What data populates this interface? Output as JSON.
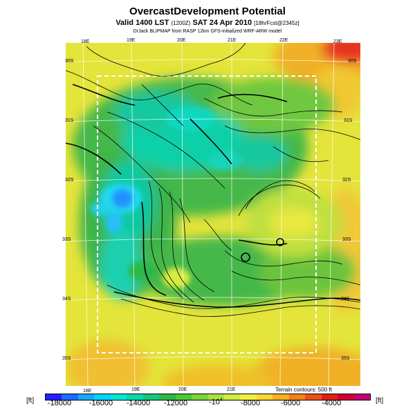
{
  "title": "OvercastDevelopment Potential",
  "subtitle_main": "Valid 1400 LST",
  "subtitle_code": "(1200Z)",
  "subtitle_date": "SAT 24 Apr 2010",
  "subtitle_fcst": "[18hrFcst@2345z]",
  "credit": "DrJack BLIPMAP from RASP 12km GFS-initialized WRF-ARW model",
  "terrain_note": "Terrain contours: 500 ft",
  "unit_left": "[ft]",
  "unit_right": "[ft]",
  "multiplier": "-10",
  "multiplier_exp": "4",
  "longitude_labels_top": [
    "18E",
    "19E",
    "20E",
    "21E",
    "22E",
    "23E"
  ],
  "longitude_labels_bottom": [
    "18E",
    "19E",
    "20E",
    "21E"
  ],
  "latitude_labels_left": [
    "30S",
    "31S",
    "32S",
    "33S",
    "34S",
    "35S"
  ],
  "latitude_labels_right": [
    "30S",
    "31S",
    "32S",
    "33S",
    "34S",
    "35S"
  ],
  "colorbar": {
    "colors": [
      "#2222ff",
      "#1e6bff",
      "#15a8ff",
      "#00d4ff",
      "#00e8d8",
      "#00dcb0",
      "#15c87a",
      "#2cb848",
      "#48c838",
      "#7ad43a",
      "#a8e040",
      "#d0ec40",
      "#f0f040",
      "#f8d830",
      "#f8b020",
      "#f48018",
      "#ec5018",
      "#e02018",
      "#d00030",
      "#c00070"
    ],
    "tick_labels": [
      "-18000",
      "-16000",
      "-14000",
      "-12000",
      "-8000",
      "-6000",
      "-4000"
    ]
  },
  "colors": {
    "background_yellow": "#e8e83a",
    "green": "#3cb44a",
    "teal": "#10d0a8",
    "cyan": "#20d8f0",
    "blue": "#2090ff",
    "orange": "#f0b028",
    "red": "#e83020",
    "domain_box": "#ffffff"
  }
}
